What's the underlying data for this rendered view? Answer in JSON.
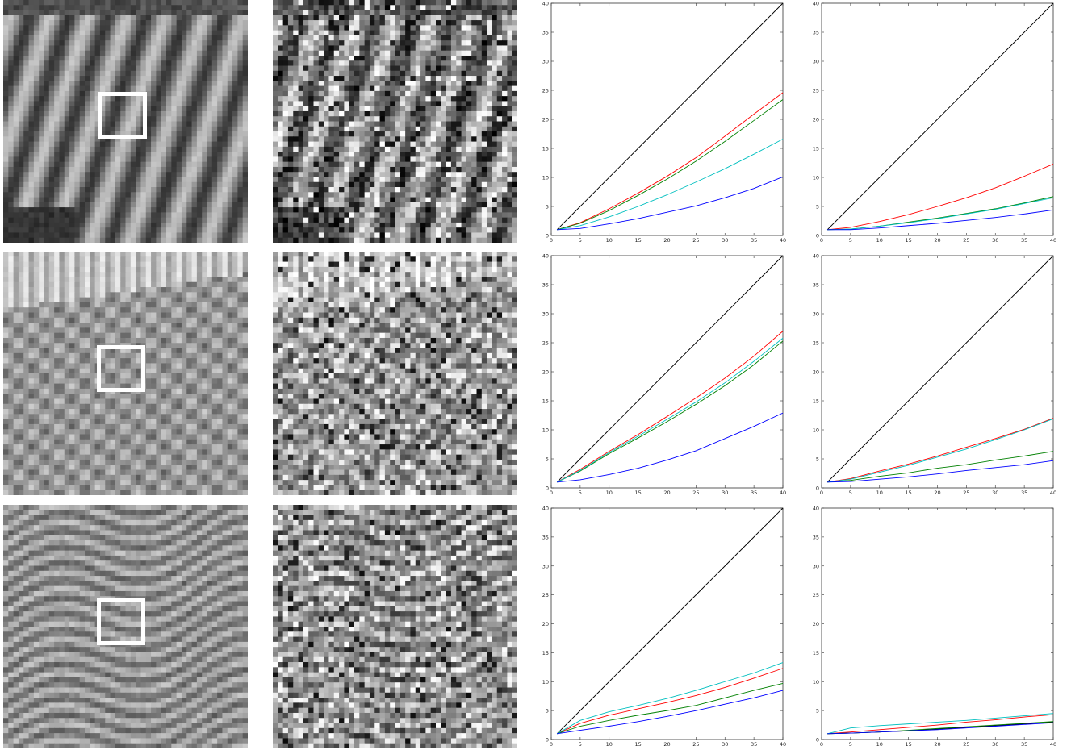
{
  "figure": {
    "rows": [
      {
        "texture": "diagonal-stripes"
      },
      {
        "texture": "dot-lattice"
      },
      {
        "texture": "horizontal-streaks"
      }
    ]
  },
  "colors": {
    "red": "#ff0000",
    "green": "#008000",
    "cyan": "#00bfbf",
    "blue": "#0000ff",
    "black": "#000000"
  },
  "chart_data": [
    {
      "type": "line",
      "row": 1,
      "col": 1,
      "xlim": [
        0,
        40
      ],
      "ylim": [
        0,
        40
      ],
      "xticks": [
        "0",
        "5",
        "10",
        "15",
        "20",
        "25",
        "30",
        "35",
        "40"
      ],
      "yticks": [
        "0",
        "5",
        "10",
        "15",
        "20",
        "25",
        "30",
        "35",
        "40"
      ],
      "x": [
        1,
        5,
        10,
        15,
        20,
        25,
        30,
        35,
        40
      ],
      "series": [
        {
          "color": "black",
          "values": [
            1,
            5,
            10,
            15,
            20,
            25,
            30,
            35,
            40
          ]
        },
        {
          "color": "red",
          "values": [
            1,
            2.2,
            4.6,
            7.3,
            10.2,
            13.4,
            17.1,
            20.9,
            24.6
          ]
        },
        {
          "color": "green",
          "values": [
            1,
            2.1,
            4.3,
            6.9,
            9.7,
            12.8,
            16.2,
            19.8,
            23.4
          ]
        },
        {
          "color": "cyan",
          "values": [
            1,
            1.7,
            3.2,
            5.0,
            7.0,
            9.2,
            11.5,
            14.0,
            16.6
          ]
        },
        {
          "color": "blue",
          "values": [
            1,
            1.2,
            2.0,
            2.9,
            4.0,
            5.1,
            6.5,
            8.1,
            10.1
          ]
        }
      ]
    },
    {
      "type": "line",
      "row": 1,
      "col": 2,
      "xlim": [
        0,
        40
      ],
      "ylim": [
        0,
        40
      ],
      "xticks": [
        "0",
        "5",
        "10",
        "15",
        "20",
        "25",
        "30",
        "35",
        "40"
      ],
      "yticks": [
        "0",
        "5",
        "10",
        "15",
        "20",
        "25",
        "30",
        "35",
        "40"
      ],
      "x": [
        1,
        5,
        10,
        15,
        20,
        25,
        30,
        35,
        40
      ],
      "series": [
        {
          "color": "black",
          "values": [
            1,
            5,
            10,
            15,
            20,
            25,
            30,
            35,
            40
          ]
        },
        {
          "color": "red",
          "values": [
            1,
            1.4,
            2.4,
            3.6,
            5.0,
            6.5,
            8.2,
            10.2,
            12.3
          ]
        },
        {
          "color": "green",
          "values": [
            1,
            1.1,
            1.6,
            2.3,
            3.0,
            3.8,
            4.6,
            5.6,
            6.7
          ]
        },
        {
          "color": "cyan",
          "values": [
            1,
            1.1,
            1.6,
            2.2,
            2.9,
            3.7,
            4.5,
            5.5,
            6.5
          ]
        },
        {
          "color": "blue",
          "values": [
            1,
            1.0,
            1.3,
            1.7,
            2.1,
            2.6,
            3.1,
            3.7,
            4.4
          ]
        }
      ]
    },
    {
      "type": "line",
      "row": 2,
      "col": 1,
      "xlim": [
        0,
        40
      ],
      "ylim": [
        0,
        40
      ],
      "xticks": [
        "0",
        "5",
        "10",
        "15",
        "20",
        "25",
        "30",
        "35",
        "40"
      ],
      "yticks": [
        "0",
        "5",
        "10",
        "15",
        "20",
        "25",
        "30",
        "35",
        "40"
      ],
      "x": [
        1,
        5,
        10,
        15,
        20,
        25,
        30,
        35,
        40
      ],
      "series": [
        {
          "color": "black",
          "values": [
            1,
            5,
            10,
            15,
            20,
            25,
            30,
            35,
            40
          ]
        },
        {
          "color": "red",
          "values": [
            1,
            3.2,
            6.3,
            9.2,
            12.3,
            15.5,
            18.9,
            22.7,
            27.0
          ]
        },
        {
          "color": "green",
          "values": [
            1,
            2.9,
            5.9,
            8.6,
            11.4,
            14.4,
            17.6,
            21.2,
            25.3
          ]
        },
        {
          "color": "cyan",
          "values": [
            1,
            3.0,
            6.1,
            8.9,
            11.8,
            14.8,
            18.1,
            21.8,
            25.8
          ]
        },
        {
          "color": "blue",
          "values": [
            1,
            1.4,
            2.3,
            3.4,
            4.8,
            6.4,
            8.5,
            10.6,
            12.9
          ]
        }
      ]
    },
    {
      "type": "line",
      "row": 2,
      "col": 2,
      "xlim": [
        0,
        40
      ],
      "ylim": [
        0,
        40
      ],
      "xticks": [
        "0",
        "5",
        "10",
        "15",
        "20",
        "25",
        "30",
        "35",
        "40"
      ],
      "yticks": [
        "0",
        "5",
        "10",
        "15",
        "20",
        "25",
        "30",
        "35",
        "40"
      ],
      "x": [
        1,
        5,
        10,
        15,
        20,
        25,
        30,
        35,
        40
      ],
      "series": [
        {
          "color": "black",
          "values": [
            1,
            5,
            10,
            15,
            20,
            25,
            30,
            35,
            40
          ]
        },
        {
          "color": "red",
          "values": [
            1,
            1.6,
            2.9,
            4.1,
            5.5,
            7.0,
            8.5,
            10.1,
            12.0
          ]
        },
        {
          "color": "green",
          "values": [
            1,
            1.3,
            2.0,
            2.6,
            3.4,
            4.0,
            4.8,
            5.5,
            6.3
          ]
        },
        {
          "color": "cyan",
          "values": [
            1,
            1.5,
            2.7,
            3.9,
            5.3,
            6.7,
            8.3,
            10.0,
            11.9
          ]
        },
        {
          "color": "blue",
          "values": [
            1,
            1.1,
            1.5,
            1.9,
            2.4,
            3.0,
            3.5,
            4.0,
            4.7
          ]
        }
      ]
    },
    {
      "type": "line",
      "row": 3,
      "col": 1,
      "xlim": [
        0,
        40
      ],
      "ylim": [
        0,
        40
      ],
      "xticks": [
        "0",
        "5",
        "10",
        "15",
        "20",
        "25",
        "30",
        "35",
        "40"
      ],
      "yticks": [
        "0",
        "5",
        "10",
        "15",
        "20",
        "25",
        "30",
        "35",
        "40"
      ],
      "x": [
        1,
        5,
        10,
        15,
        20,
        25,
        30,
        35,
        40
      ],
      "series": [
        {
          "color": "black",
          "values": [
            1,
            5,
            10,
            15,
            20,
            25,
            30,
            35,
            40
          ]
        },
        {
          "color": "red",
          "values": [
            1,
            2.8,
            4.2,
            5.3,
            6.4,
            7.6,
            9.0,
            10.6,
            12.3
          ]
        },
        {
          "color": "green",
          "values": [
            1,
            2.3,
            3.3,
            4.2,
            5.0,
            5.9,
            7.2,
            8.5,
            9.7
          ]
        },
        {
          "color": "cyan",
          "values": [
            1,
            3.3,
            4.8,
            5.9,
            7.1,
            8.5,
            10.0,
            11.5,
            13.3
          ]
        },
        {
          "color": "blue",
          "values": [
            1,
            1.6,
            2.3,
            3.1,
            4.0,
            5.0,
            6.1,
            7.2,
            8.5
          ]
        }
      ]
    },
    {
      "type": "line",
      "row": 3,
      "col": 2,
      "xlim": [
        0,
        40
      ],
      "ylim": [
        0,
        40
      ],
      "xticks": [
        "0",
        "5",
        "10",
        "15",
        "20",
        "25",
        "30",
        "35",
        "40"
      ],
      "yticks": [
        "0",
        "5",
        "10",
        "15",
        "20",
        "25",
        "30",
        "35",
        "40"
      ],
      "x": [
        1,
        5,
        10,
        15,
        20,
        25,
        30,
        35,
        40
      ],
      "series": [
        {
          "color": "black",
          "values": [
            1,
            1.1,
            1.3,
            1.5,
            1.8,
            2.1,
            2.4,
            2.7,
            3.0
          ]
        },
        {
          "color": "red",
          "values": [
            1,
            1.3,
            1.7,
            2.1,
            2.5,
            3.0,
            3.4,
            3.9,
            4.3
          ]
        },
        {
          "color": "green",
          "values": [
            1,
            1.1,
            1.3,
            1.6,
            1.9,
            2.2,
            2.5,
            2.8,
            3.1
          ]
        },
        {
          "color": "cyan",
          "values": [
            1,
            2.0,
            2.4,
            2.7,
            3.0,
            3.3,
            3.7,
            4.1,
            4.5
          ]
        },
        {
          "color": "blue",
          "values": [
            1,
            1.1,
            1.3,
            1.5,
            1.7,
            2.0,
            2.3,
            2.6,
            2.9
          ]
        }
      ]
    }
  ]
}
